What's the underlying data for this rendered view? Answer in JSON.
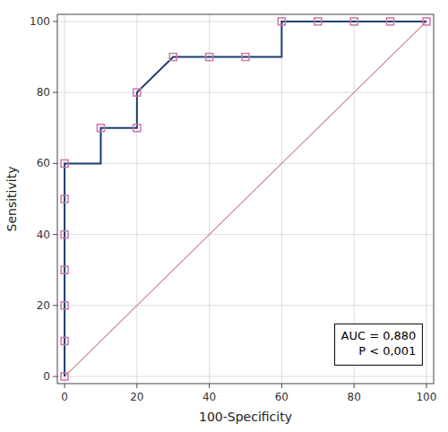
{
  "chart_data": {
    "type": "line",
    "xlabel": "100-Specificity",
    "ylabel": "Sensitivity",
    "annotations": [
      "AUC = 0,880",
      "P < 0,001"
    ],
    "xlim": [
      -2,
      102
    ],
    "ylim": [
      -2,
      102
    ],
    "xticks": [
      0,
      20,
      40,
      60,
      80,
      100
    ],
    "yticks": [
      0,
      20,
      40,
      60,
      80,
      100
    ],
    "grid": true,
    "series": [
      {
        "type": "line",
        "color": "#1b3d6e",
        "line_style": "solid",
        "x": [
          0,
          0,
          0,
          0,
          0,
          0,
          0,
          0,
          10,
          10,
          20,
          20,
          30,
          40,
          50,
          60,
          60,
          70,
          80,
          90,
          100
        ],
        "values": [
          0,
          10,
          20,
          30,
          40,
          50,
          60,
          60,
          60,
          70,
          70,
          80,
          90,
          90,
          90,
          90,
          100,
          100,
          100,
          100,
          100
        ]
      },
      {
        "type": "scatter",
        "color": "#cc77aa",
        "marker": "square",
        "x": [
          0,
          0,
          0,
          0,
          0,
          0,
          0,
          10,
          20,
          20,
          30,
          40,
          50,
          60,
          70,
          80,
          90,
          100
        ],
        "values": [
          0,
          10,
          20,
          30,
          40,
          50,
          60,
          70,
          70,
          80,
          90,
          90,
          90,
          100,
          100,
          100,
          100,
          100
        ]
      },
      {
        "type": "line",
        "color": "#cc8888",
        "line_style": "solid",
        "x": [
          0,
          100
        ],
        "values": [
          0,
          100
        ]
      }
    ]
  }
}
